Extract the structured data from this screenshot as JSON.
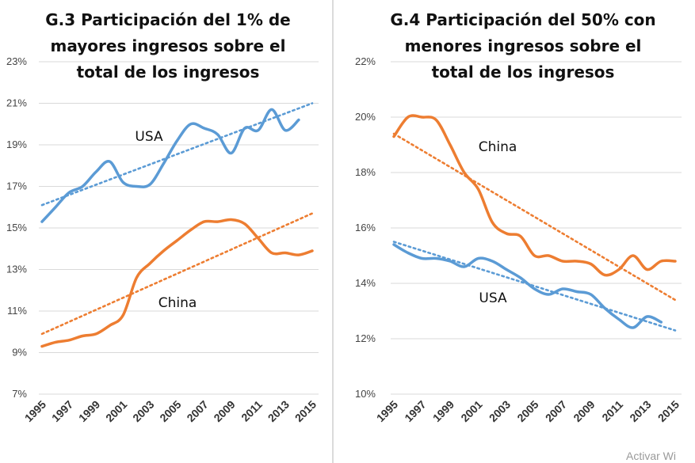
{
  "colors": {
    "usa": "#5b9bd5",
    "china": "#ed7d31",
    "grid": "#d9d9d9"
  },
  "watermark": "Activar Wi",
  "chart_data": [
    {
      "type": "line",
      "title_lines": [
        "G.3 Participación del 1% de",
        "mayores ingresos sobre el",
        "total de los ingresos"
      ],
      "ylim": [
        7,
        23
      ],
      "yticks": [
        7,
        9,
        11,
        13,
        15,
        17,
        19,
        21,
        23
      ],
      "ytick_labels": [
        "7%",
        "9%",
        "11%",
        "13%",
        "15%",
        "17%",
        "19%",
        "21%",
        "23%"
      ],
      "xlim": [
        1995,
        2015
      ],
      "xticks": [
        "1995",
        "1997",
        "1999",
        "2001",
        "2003",
        "2005",
        "2007",
        "2009",
        "2011",
        "2013",
        "2015"
      ],
      "grid": true,
      "series": [
        {
          "name": "USA",
          "color_key": "usa",
          "x": [
            1995,
            1996,
            1997,
            1998,
            1999,
            2000,
            2001,
            2002,
            2003,
            2004,
            2005,
            2006,
            2007,
            2008,
            2009,
            2010,
            2011,
            2012,
            2013,
            2014
          ],
          "values": [
            15.3,
            16.0,
            16.7,
            17.0,
            17.7,
            18.2,
            17.2,
            17.0,
            17.1,
            18.1,
            19.2,
            20.0,
            19.8,
            19.5,
            18.6,
            19.8,
            19.7,
            20.7,
            19.7,
            20.2
          ],
          "trend": [
            16.1,
            21.0
          ]
        },
        {
          "name": "China",
          "color_key": "china",
          "x": [
            1995,
            1996,
            1997,
            1998,
            1999,
            2000,
            2001,
            2002,
            2003,
            2004,
            2005,
            2006,
            2007,
            2008,
            2009,
            2010,
            2011,
            2012,
            2013,
            2014,
            2015
          ],
          "values": [
            9.3,
            9.5,
            9.6,
            9.8,
            9.9,
            10.3,
            10.8,
            12.6,
            13.3,
            13.9,
            14.4,
            14.9,
            15.3,
            15.3,
            15.4,
            15.2,
            14.5,
            13.8,
            13.8,
            13.7,
            13.9
          ],
          "trend": [
            9.9,
            15.7
          ]
        }
      ]
    },
    {
      "type": "line",
      "title_lines": [
        "G.4 Participación del 50% con",
        "menores ingresos sobre el",
        "total de los ingresos"
      ],
      "ylim": [
        10,
        22
      ],
      "yticks": [
        10,
        12,
        14,
        16,
        18,
        20,
        22
      ],
      "ytick_labels": [
        "10%",
        "12%",
        "14%",
        "16%",
        "18%",
        "20%",
        "22%"
      ],
      "xlim": [
        1995,
        2015
      ],
      "xticks": [
        "1995",
        "1997",
        "1999",
        "2001",
        "2003",
        "2005",
        "2007",
        "2009",
        "2011",
        "2013",
        "2015"
      ],
      "grid": true,
      "series": [
        {
          "name": "China",
          "color_key": "china",
          "x": [
            1995,
            1996,
            1997,
            1998,
            1999,
            2000,
            2001,
            2002,
            2003,
            2004,
            2005,
            2006,
            2007,
            2008,
            2009,
            2010,
            2011,
            2012,
            2013,
            2014,
            2015
          ],
          "values": [
            19.3,
            20.0,
            20.0,
            19.9,
            19.0,
            18.0,
            17.4,
            16.2,
            15.8,
            15.7,
            15.0,
            15.0,
            14.8,
            14.8,
            14.7,
            14.3,
            14.5,
            15.0,
            14.5,
            14.8,
            14.8
          ],
          "trend": [
            19.4,
            13.4
          ]
        },
        {
          "name": "USA",
          "color_key": "usa",
          "x": [
            1995,
            1996,
            1997,
            1998,
            1999,
            2000,
            2001,
            2002,
            2003,
            2004,
            2005,
            2006,
            2007,
            2008,
            2009,
            2010,
            2011,
            2012,
            2013,
            2014
          ],
          "values": [
            15.4,
            15.1,
            14.9,
            14.9,
            14.8,
            14.6,
            14.9,
            14.8,
            14.5,
            14.2,
            13.8,
            13.6,
            13.8,
            13.7,
            13.6,
            13.1,
            12.7,
            12.4,
            12.8,
            12.6
          ],
          "trend": [
            15.5,
            12.3
          ]
        }
      ]
    }
  ]
}
